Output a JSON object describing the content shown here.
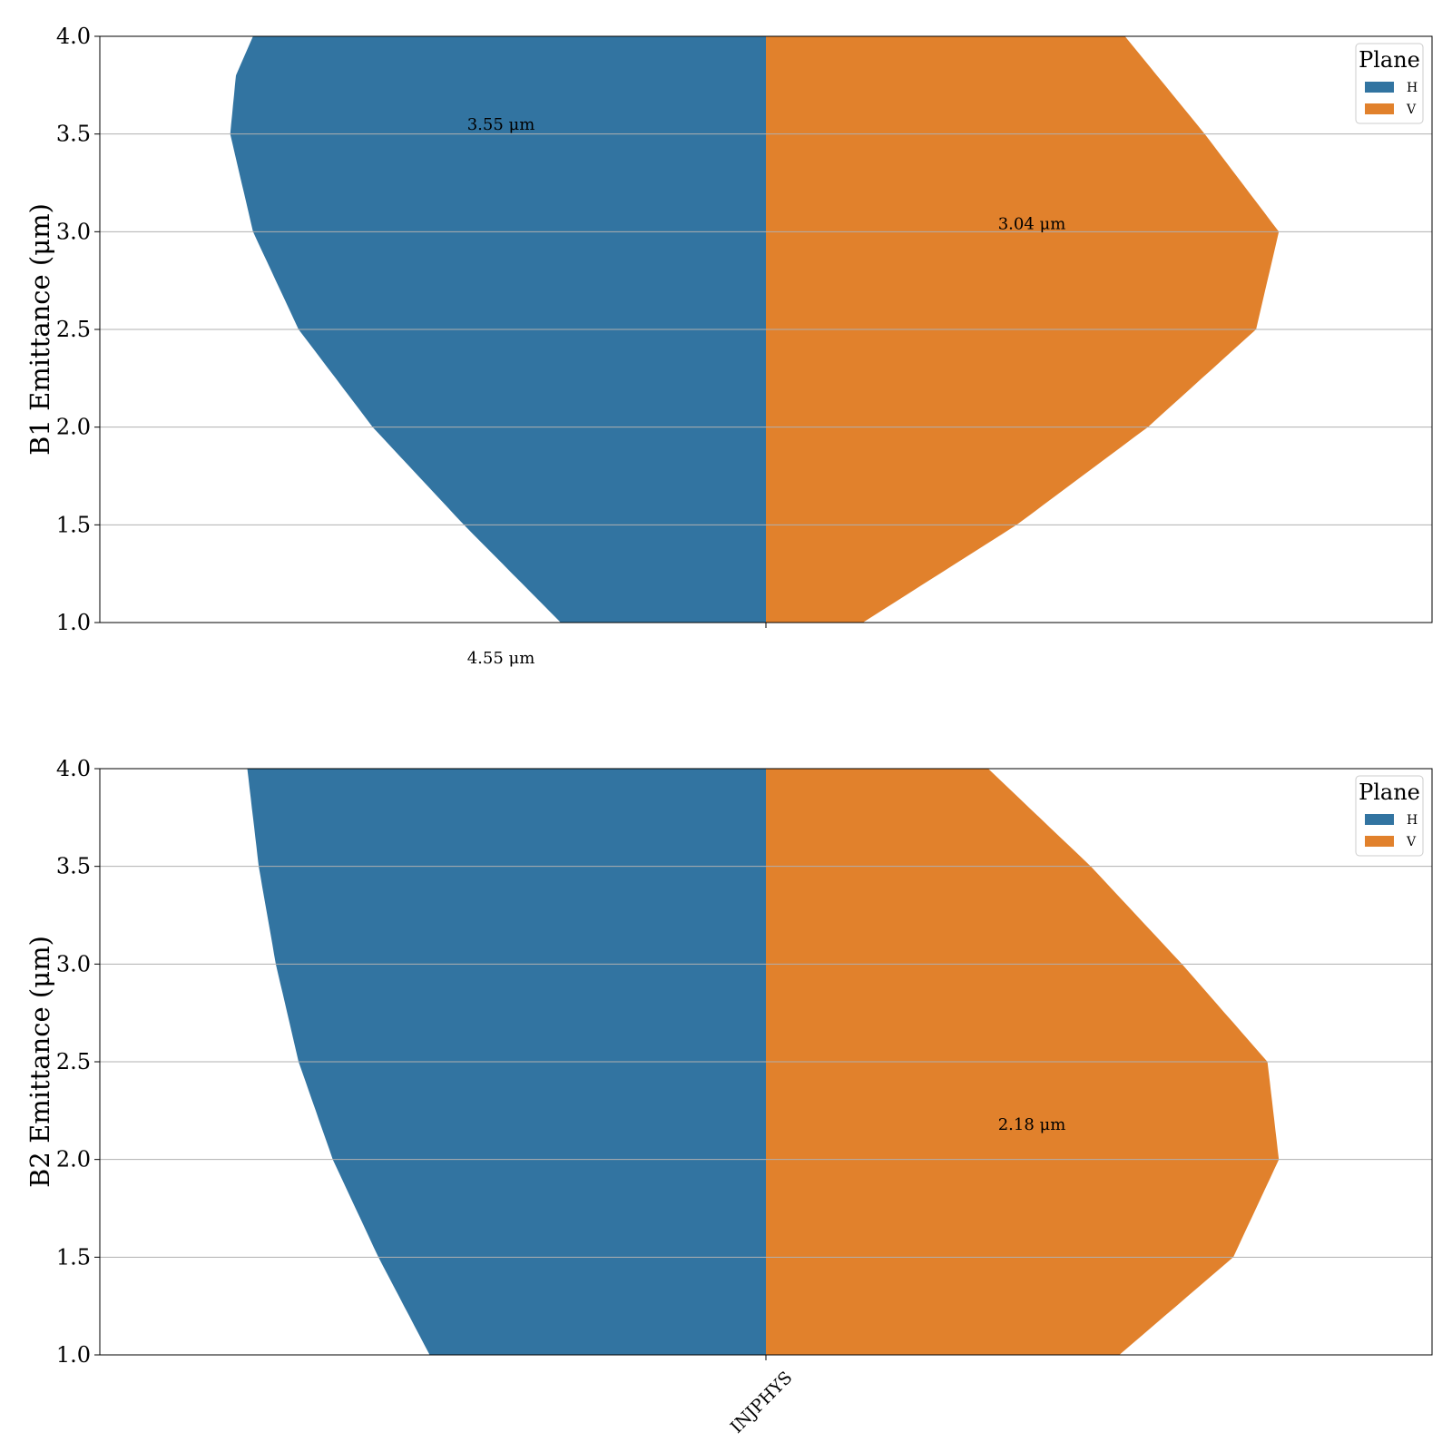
{
  "chart_data": [
    {
      "type": "violin",
      "ylabel": "B1 Emittance (μm)",
      "ylim": [
        1.0,
        4.0
      ],
      "yticks": [
        "1.0",
        "1.5",
        "2.0",
        "2.5",
        "3.0",
        "3.5",
        "4.0"
      ],
      "ytick_values": [
        1.0,
        1.5,
        2.0,
        2.5,
        3.0,
        3.5,
        4.0
      ],
      "categories": [
        ""
      ],
      "grid": true,
      "legend": {
        "title": "Plane",
        "position": "top-right",
        "entries": [
          "H",
          "V"
        ]
      },
      "series": [
        {
          "name": "H",
          "color": "#3274a1",
          "median_label": "3.55 μm",
          "median": 3.55,
          "density_profile": {
            "y": [
              1.0,
              1.5,
              2.0,
              2.5,
              3.0,
              3.5,
              3.8,
              4.0
            ],
            "half_width": [
              0.36,
              0.53,
              0.69,
              0.82,
              0.9,
              0.94,
              0.93,
              0.9
            ]
          }
        },
        {
          "name": "V",
          "color": "#e1812c",
          "median_label": "3.04 μm",
          "median": 3.04,
          "density_profile": {
            "y": [
              1.0,
              1.5,
              2.0,
              2.5,
              3.0,
              3.5,
              4.0
            ],
            "half_width": [
              0.17,
              0.44,
              0.67,
              0.86,
              0.9,
              0.77,
              0.63
            ]
          }
        }
      ],
      "annotations": [
        {
          "text": "3.55 μm",
          "y": 3.55,
          "side": "H"
        },
        {
          "text": "3.04 μm",
          "y": 3.04,
          "side": "V"
        },
        {
          "text": "4.55 μm",
          "y": 0.82,
          "side": "H"
        }
      ]
    },
    {
      "type": "violin",
      "ylabel": "B2 Emittance (μm)",
      "ylim": [
        1.0,
        4.0
      ],
      "yticks": [
        "1.0",
        "1.5",
        "2.0",
        "2.5",
        "3.0",
        "3.5",
        "4.0"
      ],
      "ytick_values": [
        1.0,
        1.5,
        2.0,
        2.5,
        3.0,
        3.5,
        4.0
      ],
      "categories": [
        "INJPHYS"
      ],
      "grid": true,
      "legend": {
        "title": "Plane",
        "position": "top-right",
        "entries": [
          "H",
          "V"
        ]
      },
      "series": [
        {
          "name": "H",
          "color": "#3274a1",
          "density_profile": {
            "y": [
              1.0,
              1.5,
              2.0,
              2.5,
              3.0,
              3.5,
              4.0
            ],
            "half_width": [
              0.59,
              0.68,
              0.76,
              0.82,
              0.86,
              0.89,
              0.91
            ]
          }
        },
        {
          "name": "V",
          "color": "#e1812c",
          "median_label": "2.18 μm",
          "median": 2.18,
          "density_profile": {
            "y": [
              1.0,
              1.5,
              2.0,
              2.5,
              3.0,
              3.5,
              4.0
            ],
            "half_width": [
              0.62,
              0.82,
              0.9,
              0.88,
              0.73,
              0.57,
              0.39
            ]
          }
        }
      ],
      "annotations": [
        {
          "text": "2.18 μm",
          "y": 2.18,
          "side": "V"
        }
      ]
    }
  ]
}
